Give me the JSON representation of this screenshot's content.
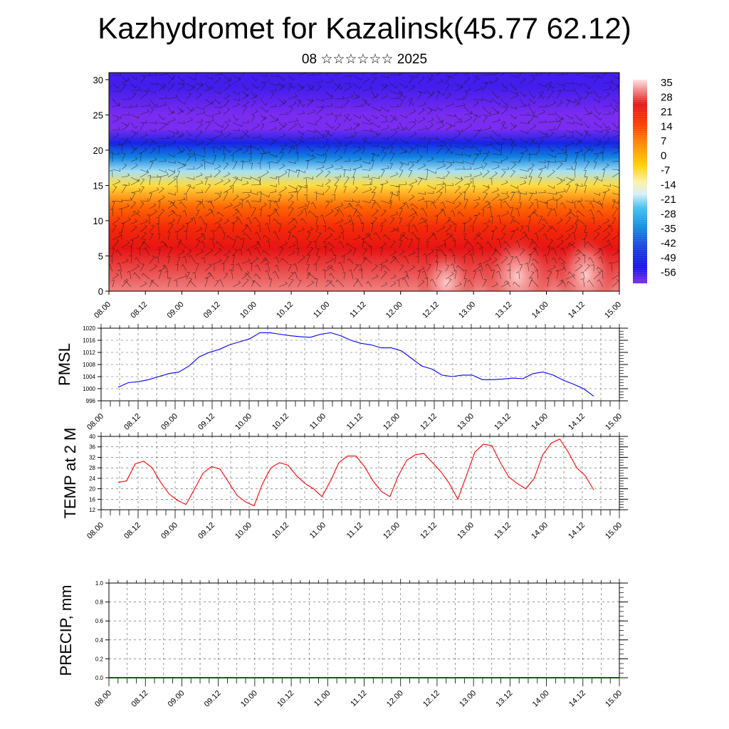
{
  "header": {
    "title": "Kazhydromet for Kazalinsk(45.77 62.12)",
    "subtitle": "08 ☆☆☆☆☆☆ 2025"
  },
  "time_labels": [
    "08.00",
    "08.12",
    "09.00",
    "09.12",
    "10.00",
    "10.12",
    "11.00",
    "11.12",
    "12.00",
    "12.12",
    "13.00",
    "13.12",
    "14.00",
    "14.12",
    "15.00"
  ],
  "colorbar": {
    "labels": [
      "35",
      "28",
      "21",
      "14",
      "7",
      "0",
      "-7",
      "-14",
      "-21",
      "-28",
      "-35",
      "-42",
      "-49",
      "-56"
    ]
  },
  "chart_data": [
    {
      "type": "heatmap",
      "title": "",
      "y_ticks": [
        "0",
        "5",
        "10",
        "15",
        "20",
        "25",
        "30"
      ],
      "ylim": [
        0,
        31
      ],
      "color_levels": [
        35,
        28,
        21,
        14,
        7,
        0,
        -7,
        -14,
        -21,
        -28,
        -35,
        -42,
        -49,
        -56
      ],
      "vertical_profile": [
        {
          "level": 0,
          "value": 30
        },
        {
          "level": 3,
          "value": 27
        },
        {
          "level": 6,
          "value": 24
        },
        {
          "level": 9,
          "value": 19
        },
        {
          "level": 12,
          "value": 10
        },
        {
          "level": 15,
          "value": -6
        },
        {
          "level": 17,
          "value": -18
        },
        {
          "level": 19,
          "value": -32
        },
        {
          "level": 21,
          "value": -45
        },
        {
          "level": 23,
          "value": -58
        },
        {
          "level": 25,
          "value": -62
        },
        {
          "level": 27,
          "value": -54
        },
        {
          "level": 29,
          "value": -52
        },
        {
          "level": 31,
          "value": -52
        }
      ],
      "overlay": "wind barbs"
    },
    {
      "type": "line",
      "ylabel": "PMSL",
      "y_ticks": [
        "996",
        "1000",
        "1004",
        "1008",
        "1012",
        "1016",
        "1020"
      ],
      "ylim": [
        996,
        1020
      ],
      "series": [
        {
          "color": "#0000ff",
          "values": [
            1000.5,
            1002,
            1002.3,
            1003,
            1004,
            1005,
            1005.5,
            1007.5,
            1010.5,
            1012,
            1013,
            1014.5,
            1015.5,
            1016.5,
            1018.5,
            1018.5,
            1018,
            1017.5,
            1017.2,
            1017,
            1018,
            1018.5,
            1017.5,
            1016,
            1015,
            1014.5,
            1013.5,
            1013.5,
            1012.5,
            1010,
            1007.5,
            1006.5,
            1004.5,
            1004,
            1004.5,
            1004.5,
            1003,
            1003,
            1003.2,
            1003.5,
            1003.3,
            1005,
            1005.5,
            1004.5,
            1002.8,
            1001.5,
            1000,
            997.5
          ]
        }
      ]
    },
    {
      "type": "line",
      "ylabel": "TEMP at 2 M",
      "y_ticks": [
        "12",
        "16",
        "20",
        "24",
        "28",
        "32",
        "36",
        "40"
      ],
      "ylim": [
        12,
        40
      ],
      "series": [
        {
          "color": "#ff0000",
          "values": [
            22.5,
            23,
            29.5,
            30.5,
            28,
            22.5,
            18,
            15.5,
            14,
            20,
            26,
            28.5,
            27.5,
            22.5,
            17.5,
            15,
            13.5,
            22,
            28,
            30,
            29,
            25,
            22,
            20,
            17,
            23,
            30,
            32.5,
            32.5,
            28.5,
            23,
            19,
            17,
            25,
            31,
            33,
            33.5,
            30,
            26.5,
            22,
            16,
            25,
            34,
            37,
            36.5,
            30,
            24.5,
            22,
            20,
            24,
            33,
            37.5,
            39,
            34,
            28,
            25,
            19.5
          ]
        }
      ]
    },
    {
      "type": "bar",
      "ylabel": "PRECIP, mm",
      "y_ticks": [
        "0.0",
        "0.2",
        "0.4",
        "0.6",
        "0.8",
        "1.0"
      ],
      "ylim": [
        0,
        1
      ],
      "values": []
    }
  ]
}
